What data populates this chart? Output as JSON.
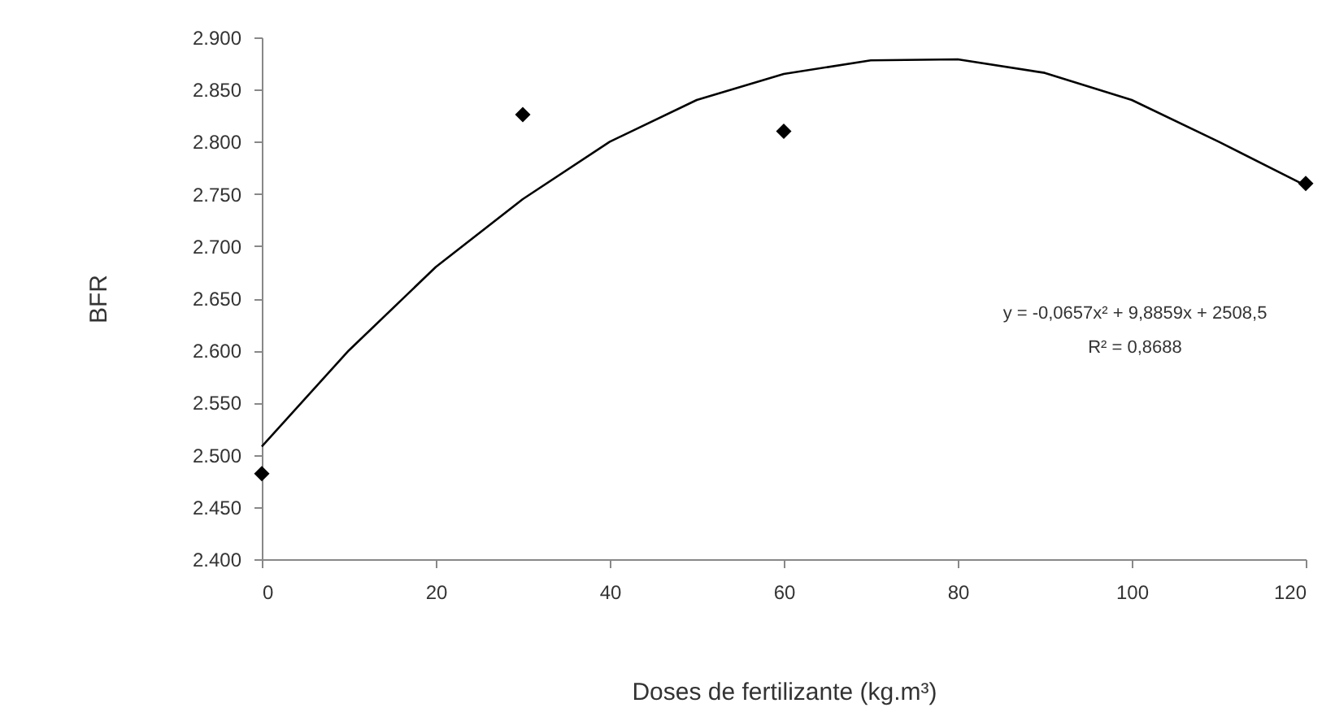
{
  "chart_data": {
    "type": "scatter",
    "xlabel": "Doses de fertilizante (kg.m³)",
    "ylabel": "BFR",
    "xlim": [
      0,
      120
    ],
    "xticks": [
      0,
      20,
      40,
      60,
      80,
      100,
      120
    ],
    "ylim": [
      2400,
      2900
    ],
    "yticks": [
      {
        "value": 2400,
        "label": "2.400"
      },
      {
        "value": 2450,
        "label": "2.450"
      },
      {
        "value": 2500,
        "label": "2.500"
      },
      {
        "value": 2550,
        "label": "2.550"
      },
      {
        "value": 2600,
        "label": "2.600"
      },
      {
        "value": 2650,
        "label": "2.650"
      },
      {
        "value": 2700,
        "label": "2.700"
      },
      {
        "value": 2750,
        "label": "2.750"
      },
      {
        "value": 2800,
        "label": "2.800"
      },
      {
        "value": 2850,
        "label": "2.850"
      },
      {
        "value": 2900,
        "label": "2.900"
      }
    ],
    "grid": false,
    "series": [
      {
        "type": "scatter",
        "marker": "diamond",
        "color": "#000000",
        "x": [
          0,
          30,
          60,
          120
        ],
        "values": [
          2482,
          2826,
          2810,
          2760
        ]
      },
      {
        "type": "line",
        "marker": "none",
        "line_style": "solid",
        "color": "#000000",
        "x": [
          0,
          10,
          20,
          30,
          40,
          50,
          60,
          70,
          80,
          90,
          100,
          110,
          120
        ],
        "values": [
          2508,
          2600,
          2680,
          2745,
          2800,
          2840,
          2865,
          2878,
          2879,
          2866,
          2840,
          2800,
          2758
        ]
      }
    ],
    "annotations": [
      "y = -0,0657x² + 9,8859x + 2508,5",
      "R² = 0,8688"
    ]
  }
}
